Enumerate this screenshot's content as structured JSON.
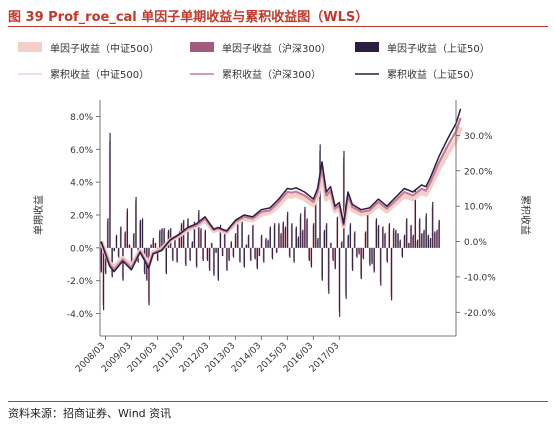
{
  "figure": {
    "title": "图 39 Prof_roe_cal 单因子单期收益与累积收益图（WLS）",
    "source": "资料来源：招商证券、Wind 资讯"
  },
  "chart_data": {
    "type": "bar+line",
    "left_axis": {
      "label": "单期收益",
      "ylim": [
        -5.0,
        9.0
      ],
      "ticks": [
        -4.0,
        -2.0,
        0.0,
        2.0,
        4.0,
        6.0,
        8.0
      ],
      "tick_labels": [
        "-4.0%",
        "-2.0%",
        "0.0%",
        "2.0%",
        "4.0%",
        "6.0%",
        "8.0%"
      ]
    },
    "right_axis": {
      "label": "累积收益",
      "ylim": [
        -25.0,
        40.0
      ],
      "ticks": [
        -20.0,
        -10.0,
        0.0,
        10.0,
        20.0,
        30.0
      ],
      "tick_labels": [
        "-20.0%",
        "-10.0%",
        "0.0%",
        "10.0%",
        "20.0%",
        "30.0%"
      ]
    },
    "x_axis": {
      "start": "2008/01",
      "end": "2018/03",
      "tick_labels": [
        "2008/03",
        "2009/03",
        "2010/03",
        "2011/03",
        "2012/03",
        "2013/03",
        "2014/03",
        "2015/03",
        "2016/03",
        "2017/03"
      ]
    },
    "legend": {
      "placement": "top",
      "entries": [
        {
          "label": "单因子收益（中证500）",
          "kind": "bar",
          "color": "#f2cfc9"
        },
        {
          "label": "单因子收益（沪深300）",
          "kind": "bar",
          "color": "#a35a7f"
        },
        {
          "label": "单因子收益（上证50）",
          "kind": "bar",
          "color": "#2b1e3f"
        },
        {
          "label": "累积收益（中证500）",
          "kind": "line",
          "color": "#f2cfc9"
        },
        {
          "label": "累积收益（沪深300）",
          "kind": "line",
          "color": "#c77b98"
        },
        {
          "label": "累积收益（上证50）",
          "kind": "line",
          "color": "#2b1e3f"
        }
      ]
    },
    "bar_values_sz50": [
      -1.5,
      -3.8,
      -1.6,
      1.8,
      7.0,
      -1.8,
      -0.2,
      0.8,
      -0.6,
      1.3,
      -2.0,
      1.0,
      2.4,
      0.2,
      -1.2,
      0.9,
      3.1,
      -0.9,
      1.7,
      1.8,
      -1.6,
      -2.0,
      -3.5,
      0.2,
      0.6,
      0.3,
      -0.8,
      1.1,
      1.2,
      1.2,
      -1.6,
      1.1,
      1.2,
      -0.8,
      0.5,
      -0.9,
      1.0,
      1.5,
      1.7,
      -1.1,
      1.8,
      -0.8,
      0.4,
      1.6,
      -1.2,
      2.3,
      1.2,
      -0.8,
      1.1,
      -0.8,
      -1.4,
      0.3,
      -1.7,
      -0.3,
      -2.0,
      1.4,
      -0.5,
      0.9,
      -1.4,
      -0.8,
      0.4,
      -0.6,
      0.9,
      1.6,
      -0.9,
      1.6,
      -1.2,
      0.2,
      0.8,
      -0.8,
      1.4,
      -0.7,
      -1.3,
      -0.5,
      0.8,
      -0.9,
      0.6,
      0.5,
      1.3,
      -0.7,
      1.5,
      -0.3,
      1.5,
      0.9,
      1.6,
      1.3,
      2.2,
      -0.6,
      1.5,
      -0.9,
      1.3,
      0.7,
      2.1,
      1.1,
      2.5,
      1.8,
      -0.8,
      -1.2,
      1.5,
      2.9,
      0.6,
      6.3,
      -2.0,
      1.1,
      1.5,
      -2.8,
      0.3,
      -0.8,
      -1.3,
      1.9,
      -4.2,
      0.4,
      5.9,
      -3.1,
      0.8,
      1.5,
      -1.4,
      1.0,
      -0.6,
      -0.4,
      -1.9,
      -0.7,
      1.0,
      2.3,
      -1.1,
      -1.0,
      -1.5,
      1.8,
      1.4,
      -2.3,
      1.3,
      0.9,
      -0.9,
      1.5,
      -3.2,
      1.2,
      1.1,
      0.9,
      0.5,
      -0.6,
      0.8,
      1.8,
      0.3,
      1.4,
      0.8,
      3.5,
      0.5,
      1.8,
      0.9,
      1.1,
      2.1,
      0.8,
      0.6,
      2.8,
      1.0,
      1.1,
      1.7
    ],
    "bar_values_hs300": [
      -1.4,
      -3.5,
      -1.5,
      1.6,
      6.5,
      -1.7,
      -0.2,
      0.7,
      -0.5,
      1.2,
      -1.9,
      0.9,
      2.2,
      0.2,
      -1.1,
      0.8,
      2.9,
      -0.8,
      1.6,
      1.7,
      -1.5,
      -1.9,
      -3.3,
      0.2,
      0.5,
      0.3,
      -0.7,
      1.0,
      1.1,
      1.1,
      -1.5,
      1.0,
      1.1,
      -0.7,
      0.4,
      -0.8,
      0.9,
      1.4,
      1.6,
      -1.0,
      1.7,
      -0.7,
      0.3,
      1.5,
      -1.1,
      2.1,
      1.1,
      -0.7,
      1.0,
      -0.7,
      -1.3,
      0.3,
      -1.6,
      -0.3,
      -1.9,
      1.3,
      -0.5,
      0.8,
      -1.3,
      -0.7,
      0.3,
      -0.5,
      0.8,
      1.5,
      -0.8,
      1.5,
      -1.1,
      0.2,
      0.7,
      -0.7,
      1.3,
      -0.6,
      -1.2,
      -0.5,
      0.7,
      -0.8,
      0.5,
      0.4,
      1.2,
      -0.6,
      1.4,
      -0.3,
      1.4,
      0.8,
      1.5,
      1.2,
      2.0,
      -0.5,
      1.4,
      -0.8,
      1.2,
      0.6,
      1.9,
      1.0,
      2.3,
      1.7,
      -0.7,
      -1.1,
      1.4,
      2.7,
      0.5,
      5.9,
      -1.9,
      1.0,
      1.4,
      -2.6,
      0.3,
      -0.7,
      -1.2,
      1.8,
      -3.9,
      0.3,
      5.5,
      -2.9,
      0.7,
      1.4,
      -1.3,
      0.9,
      -0.5,
      -0.3,
      -1.8,
      -0.6,
      0.9,
      2.1,
      -1.0,
      -0.9,
      -1.4,
      1.7,
      1.3,
      -2.1,
      1.2,
      0.8,
      -0.8,
      1.4,
      -3.0,
      1.1,
      1.0,
      0.8,
      0.4,
      -0.5,
      0.7,
      1.7,
      0.3,
      1.3,
      0.7,
      3.3,
      0.4,
      1.7,
      0.8,
      1.0,
      1.9,
      0.7,
      0.5,
      2.6,
      0.9,
      1.0,
      1.6
    ],
    "bar_values_zz500": [
      -1.3,
      -3.2,
      -1.4,
      1.5,
      6.0,
      -1.5,
      -0.2,
      0.7,
      -0.5,
      1.1,
      -1.7,
      0.8,
      2.0,
      0.2,
      -1.0,
      0.8,
      2.6,
      -0.8,
      1.4,
      1.5,
      -1.4,
      -1.7,
      -3.0,
      0.2,
      0.5,
      0.3,
      -0.7,
      0.9,
      1.0,
      1.0,
      -1.4,
      0.9,
      1.0,
      -0.7,
      0.4,
      -0.8,
      0.8,
      1.3,
      1.4,
      -0.9,
      1.5,
      -0.7,
      0.3,
      1.4,
      -1.0,
      2.0,
      1.0,
      -0.7,
      0.9,
      -0.7,
      -1.2,
      0.3,
      -1.4,
      -0.3,
      -1.7,
      1.2,
      -0.4,
      0.8,
      -1.2,
      -0.7,
      0.3,
      -0.5,
      0.8,
      1.4,
      -0.8,
      1.4,
      -1.0,
      0.2,
      0.7,
      -0.7,
      1.2,
      -0.6,
      -1.1,
      -0.4,
      0.7,
      -0.8,
      0.5,
      0.4,
      1.1,
      -0.6,
      1.3,
      -0.3,
      1.3,
      0.8,
      1.4,
      1.1,
      1.9,
      -0.5,
      1.3,
      -0.8,
      1.1,
      0.6,
      1.8,
      0.9,
      2.1,
      1.5,
      -0.7,
      -1.0,
      1.3,
      2.5,
      0.5,
      5.4,
      -1.7,
      0.9,
      1.3,
      -2.4,
      0.3,
      -0.7,
      -1.1,
      1.6,
      -3.6,
      0.3,
      5.1,
      -2.7,
      0.7,
      1.3,
      -1.2,
      0.9,
      -0.5,
      -0.3,
      -1.6,
      -0.6,
      0.9,
      2.0,
      -0.9,
      -0.9,
      -1.3,
      1.5,
      1.2,
      -2.0,
      1.1,
      0.8,
      -0.8,
      1.3,
      -2.8,
      1.0,
      0.9,
      0.8,
      0.4,
      -0.5,
      0.7,
      1.5,
      0.3,
      1.2,
      0.7,
      3.0,
      0.4,
      1.5,
      0.8,
      0.9,
      1.8,
      0.7,
      0.5,
      2.4,
      0.9,
      0.9,
      1.5
    ],
    "cum_points": {
      "sz50": [
        [
          0,
          0.0
        ],
        [
          4,
          -7.0
        ],
        [
          6,
          -8.5
        ],
        [
          10,
          -5.5
        ],
        [
          14,
          -8.0
        ],
        [
          18,
          -3.0
        ],
        [
          22,
          -7.5
        ],
        [
          24,
          -3.5
        ],
        [
          28,
          -2.5
        ],
        [
          32,
          0.5
        ],
        [
          36,
          2.0
        ],
        [
          40,
          4.0
        ],
        [
          44,
          5.0
        ],
        [
          48,
          7.0
        ],
        [
          52,
          3.5
        ],
        [
          54,
          4.0
        ],
        [
          58,
          3.0
        ],
        [
          62,
          6.0
        ],
        [
          66,
          7.5
        ],
        [
          70,
          7.0
        ],
        [
          74,
          9.0
        ],
        [
          78,
          9.5
        ],
        [
          82,
          12.0
        ],
        [
          84,
          13.5
        ],
        [
          86,
          15.0
        ],
        [
          88,
          14.8
        ],
        [
          90,
          15.2
        ],
        [
          94,
          14.0
        ],
        [
          98,
          12.0
        ],
        [
          100,
          15.0
        ],
        [
          102,
          22.5
        ],
        [
          104,
          14.0
        ],
        [
          106,
          15.5
        ],
        [
          108,
          10.0
        ],
        [
          110,
          11.0
        ],
        [
          112,
          5.0
        ],
        [
          114,
          14.0
        ],
        [
          116,
          10.5
        ],
        [
          120,
          9.0
        ],
        [
          124,
          9.5
        ],
        [
          128,
          12.0
        ],
        [
          132,
          10.0
        ],
        [
          136,
          12.5
        ],
        [
          140,
          15.0
        ],
        [
          144,
          14.0
        ],
        [
          148,
          16.0
        ],
        [
          150,
          15.5
        ],
        [
          152,
          18.0
        ],
        [
          156,
          24.0
        ],
        [
          160,
          29.0
        ],
        [
          164,
          33.5
        ],
        [
          166,
          37.5
        ]
      ],
      "hs300": [
        [
          0,
          0.0
        ],
        [
          4,
          -6.5
        ],
        [
          6,
          -7.9
        ],
        [
          10,
          -5.1
        ],
        [
          14,
          -7.4
        ],
        [
          18,
          -2.8
        ],
        [
          22,
          -7.0
        ],
        [
          24,
          -3.3
        ],
        [
          28,
          -2.3
        ],
        [
          32,
          0.5
        ],
        [
          36,
          1.9
        ],
        [
          40,
          3.7
        ],
        [
          44,
          4.6
        ],
        [
          48,
          6.5
        ],
        [
          52,
          3.3
        ],
        [
          54,
          3.7
        ],
        [
          58,
          2.8
        ],
        [
          62,
          5.6
        ],
        [
          66,
          7.0
        ],
        [
          70,
          6.5
        ],
        [
          74,
          8.4
        ],
        [
          78,
          8.8
        ],
        [
          82,
          11.2
        ],
        [
          84,
          12.6
        ],
        [
          86,
          14.0
        ],
        [
          88,
          13.8
        ],
        [
          90,
          14.1
        ],
        [
          94,
          13.0
        ],
        [
          98,
          11.2
        ],
        [
          100,
          14.0
        ],
        [
          102,
          20.9
        ],
        [
          104,
          13.0
        ],
        [
          106,
          14.4
        ],
        [
          108,
          9.3
        ],
        [
          110,
          10.2
        ],
        [
          112,
          4.7
        ],
        [
          114,
          13.0
        ],
        [
          116,
          9.8
        ],
        [
          120,
          8.4
        ],
        [
          124,
          8.8
        ],
        [
          128,
          11.2
        ],
        [
          132,
          9.3
        ],
        [
          136,
          11.6
        ],
        [
          140,
          14.0
        ],
        [
          144,
          13.0
        ],
        [
          148,
          14.9
        ],
        [
          150,
          14.4
        ],
        [
          152,
          16.7
        ],
        [
          156,
          22.3
        ],
        [
          160,
          27.0
        ],
        [
          164,
          31.2
        ],
        [
          166,
          34.9
        ]
      ],
      "zz500": [
        [
          0,
          0.0
        ],
        [
          4,
          -6.0
        ],
        [
          6,
          -7.3
        ],
        [
          10,
          -4.7
        ],
        [
          14,
          -6.9
        ],
        [
          18,
          -2.6
        ],
        [
          22,
          -6.5
        ],
        [
          24,
          -3.0
        ],
        [
          28,
          -2.2
        ],
        [
          32,
          0.4
        ],
        [
          36,
          1.7
        ],
        [
          40,
          3.4
        ],
        [
          44,
          4.3
        ],
        [
          48,
          6.0
        ],
        [
          52,
          3.0
        ],
        [
          54,
          3.4
        ],
        [
          58,
          2.6
        ],
        [
          62,
          5.2
        ],
        [
          66,
          6.5
        ],
        [
          70,
          6.0
        ],
        [
          74,
          7.7
        ],
        [
          78,
          8.2
        ],
        [
          82,
          10.3
        ],
        [
          84,
          11.6
        ],
        [
          86,
          12.9
        ],
        [
          88,
          12.7
        ],
        [
          90,
          13.1
        ],
        [
          94,
          12.0
        ],
        [
          98,
          10.3
        ],
        [
          100,
          12.9
        ],
        [
          102,
          19.4
        ],
        [
          104,
          12.0
        ],
        [
          106,
          13.3
        ],
        [
          108,
          8.6
        ],
        [
          110,
          9.5
        ],
        [
          112,
          4.3
        ],
        [
          114,
          12.0
        ],
        [
          116,
          9.0
        ],
        [
          120,
          7.7
        ],
        [
          124,
          8.2
        ],
        [
          128,
          10.3
        ],
        [
          132,
          8.6
        ],
        [
          136,
          10.8
        ],
        [
          140,
          12.9
        ],
        [
          144,
          12.0
        ],
        [
          148,
          13.8
        ],
        [
          150,
          13.3
        ],
        [
          152,
          15.5
        ],
        [
          156,
          20.6
        ],
        [
          160,
          24.9
        ],
        [
          164,
          28.8
        ],
        [
          166,
          32.3
        ]
      ]
    },
    "grid": false
  }
}
